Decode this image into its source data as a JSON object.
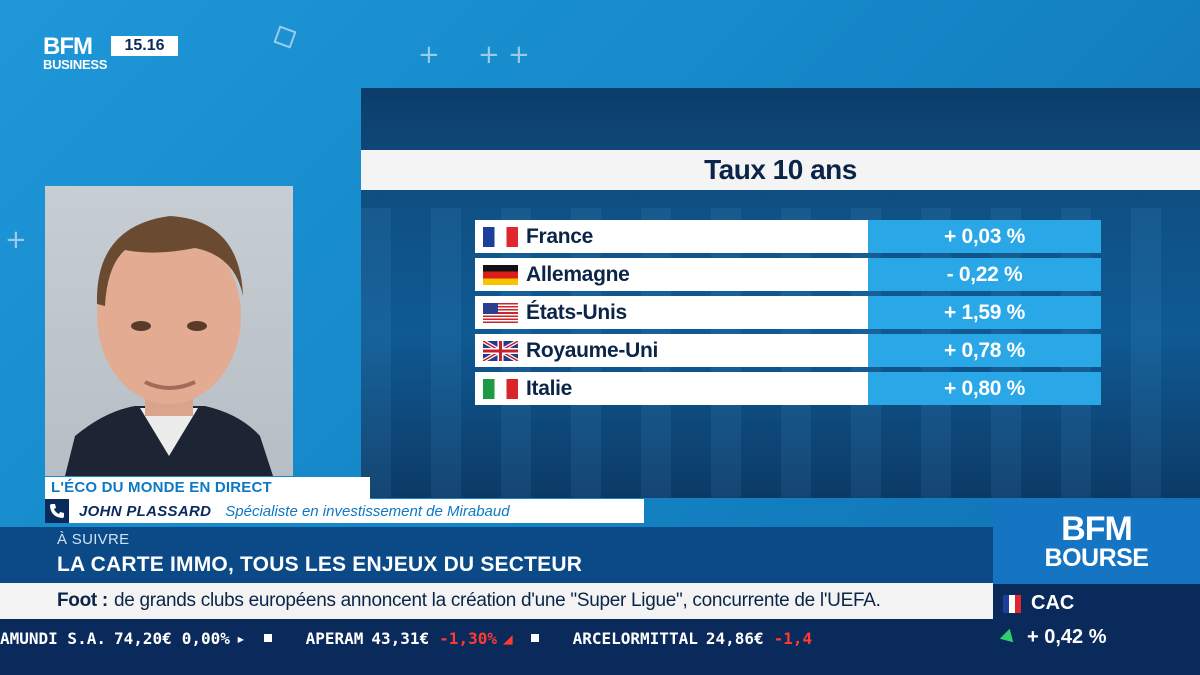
{
  "header": {
    "logo_main": "BFM",
    "logo_sub": "BUSINESS",
    "clock": "15.16"
  },
  "panel": {
    "title": "Taux 10 ans",
    "rows": [
      {
        "country": "France",
        "flag": "flag-fr",
        "value": "+ 0,03 %"
      },
      {
        "country": "Allemagne",
        "flag": "flag-de",
        "value": "- 0,22 %"
      },
      {
        "country": "États-Unis",
        "flag": "flag-us",
        "value": "+ 1,59 %"
      },
      {
        "country": "Royaume-Uni",
        "flag": "flag-gb",
        "value": "+ 0,78 %"
      },
      {
        "country": "Italie",
        "flag": "flag-it",
        "value": "+ 0,80 %"
      }
    ]
  },
  "lower_third": {
    "show": "L'ÉCO DU MONDE EN DIRECT",
    "guest_name": "JOHN PLASSARD",
    "guest_role": "Spécialiste en investissement de Mirabaud",
    "next_label": "À SUIVRE",
    "next_title": "LA CARTE IMMO, TOUS LES ENJEUX DU SECTEUR"
  },
  "news": {
    "key": "Foot :",
    "text": "de grands clubs européens annoncent la création d'une \"Super Ligue\", concurrente de l'UEFA."
  },
  "ticker": [
    {
      "name": "AMUNDI S.A.",
      "price": "74,20€",
      "change": "0,00%",
      "dir": "neutral"
    },
    {
      "name": "APERAM",
      "price": "43,31€",
      "change": "-1,30%",
      "dir": "down"
    },
    {
      "name": "ARCELORMITTAL",
      "price": "24,86€",
      "change": "-1,4",
      "dir": "down"
    }
  ],
  "bourse": {
    "logo_top": "BFM",
    "logo_bottom": "BOURSE",
    "index_name": "CAC",
    "index_change": "+ 0,42 %"
  },
  "colors": {
    "navy": "#0b2a5c",
    "accent_blue": "#29a7e6",
    "negative": "#ff3b30",
    "positive_arrow": "#2fd16a"
  }
}
